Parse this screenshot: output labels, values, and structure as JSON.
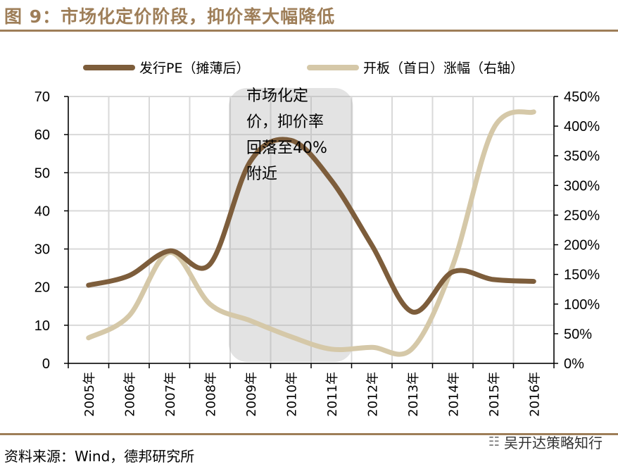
{
  "header": {
    "title": "图 9：市场化定价阶段，抑价率大幅降低"
  },
  "footer": {
    "source": "资料来源：Wind，德邦研究所",
    "watermark": "吴开达策略知行"
  },
  "chart_data": {
    "type": "line",
    "categories": [
      "2005年",
      "2006年",
      "2007年",
      "2008年",
      "2009年",
      "2010年",
      "2011年",
      "2012年",
      "2013年",
      "2014年",
      "2015年",
      "2016年"
    ],
    "series": [
      {
        "name": "发行PE（摊薄后）",
        "axis": "left",
        "color": "#7d5d3b",
        "values": [
          20.5,
          23,
          29.5,
          26,
          53,
          58.5,
          48,
          31,
          13.5,
          24,
          22,
          21.5
        ]
      },
      {
        "name": "开板（首日）涨幅（右轴）",
        "axis": "right",
        "color": "#d5c8a8",
        "values": [
          0.43,
          0.8,
          1.87,
          1.0,
          0.72,
          0.45,
          0.24,
          0.27,
          0.25,
          1.65,
          3.95,
          4.24
        ]
      }
    ],
    "left_axis": {
      "ylim": [
        0,
        70
      ],
      "ticks": [
        "0",
        "10",
        "20",
        "30",
        "40",
        "50",
        "60",
        "70"
      ]
    },
    "right_axis": {
      "ylim": [
        0,
        4.5
      ],
      "ticks": [
        "0%",
        "50%",
        "100%",
        "150%",
        "200%",
        "250%",
        "300%",
        "350%",
        "400%",
        "450%"
      ]
    },
    "grid": true,
    "legend_position": "top",
    "highlight": {
      "from": "2009年",
      "to": "2011年"
    },
    "annotation": {
      "lines": [
        "市场化定",
        "价，抑价率",
        "回落至40%",
        "附近"
      ]
    }
  }
}
